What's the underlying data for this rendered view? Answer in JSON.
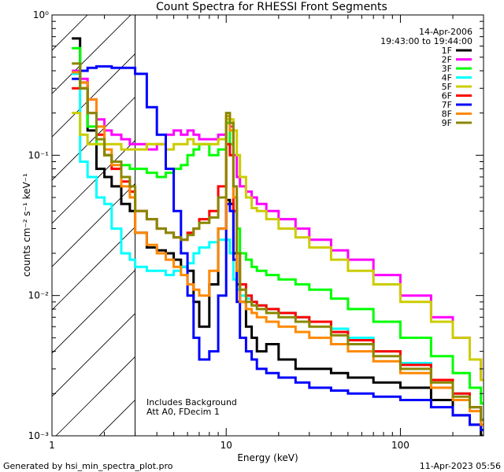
{
  "chart_data": {
    "type": "line",
    "title": "Count Spectra for RHESSI Front Segments",
    "xlabel": "Energy (keV)",
    "ylabel": "counts cm⁻² s⁻¹ keV⁻¹",
    "xscale": "log",
    "yscale": "log",
    "xlim": [
      1,
      300
    ],
    "ylim": [
      0.001,
      1.0
    ],
    "x_ticks": [
      {
        "value": 1,
        "label": "1"
      },
      {
        "value": 10,
        "label": "10"
      },
      {
        "value": 100,
        "label": "100"
      }
    ],
    "y_ticks": [
      {
        "value": 1.0,
        "label": "10⁰"
      },
      {
        "value": 0.1,
        "label": "10⁻¹"
      },
      {
        "value": 0.01,
        "label": "10⁻²"
      },
      {
        "value": 0.001,
        "label": "10⁻³"
      }
    ],
    "date": "14-Apr-2006",
    "time_range": "19:43:00 to 19:44:00",
    "excluded_region_max_kev": 3.0,
    "annotations": [
      "Includes Background",
      "Att A0, FDecim 1"
    ],
    "series": [
      {
        "name": "1F",
        "color": "#000000",
        "x": [
          1.3,
          1.45,
          1.6,
          1.8,
          2.0,
          2.2,
          2.5,
          2.8,
          3.0,
          3.5,
          4,
          4.5,
          5,
          5.5,
          6,
          6.5,
          7,
          8,
          9,
          10,
          10.5,
          11,
          11.5,
          12,
          13,
          14,
          15,
          17,
          20,
          25,
          30,
          40,
          50,
          70,
          100,
          150,
          200,
          250,
          290
        ],
        "y": [
          0.68,
          0.33,
          0.15,
          0.08,
          0.07,
          0.06,
          0.045,
          0.04,
          0.028,
          0.022,
          0.021,
          0.02,
          0.018,
          0.016,
          0.015,
          0.009,
          0.006,
          0.012,
          0.03,
          0.048,
          0.045,
          0.02,
          0.012,
          0.009,
          0.006,
          0.005,
          0.004,
          0.0045,
          0.0035,
          0.003,
          0.003,
          0.0028,
          0.0026,
          0.0024,
          0.0022,
          0.0018,
          0.0014,
          0.0012,
          0.001
        ]
      },
      {
        "name": "2F",
        "color": "#ff00ff",
        "x": [
          1.3,
          1.45,
          1.6,
          1.8,
          2.0,
          2.2,
          2.5,
          2.8,
          3.0,
          3.5,
          4,
          4.5,
          5,
          5.5,
          6,
          6.5,
          7,
          8,
          9,
          10,
          10.5,
          11,
          11.5,
          12,
          13,
          14,
          15,
          17,
          20,
          25,
          30,
          40,
          50,
          70,
          100,
          150,
          200,
          250,
          290
        ],
        "y": [
          0.4,
          0.35,
          0.25,
          0.18,
          0.15,
          0.14,
          0.13,
          0.12,
          0.12,
          0.11,
          0.12,
          0.14,
          0.15,
          0.14,
          0.15,
          0.14,
          0.13,
          0.13,
          0.14,
          0.17,
          0.16,
          0.1,
          0.07,
          0.06,
          0.055,
          0.05,
          0.045,
          0.04,
          0.035,
          0.03,
          0.025,
          0.021,
          0.018,
          0.014,
          0.01,
          0.007,
          0.005,
          0.0035,
          0.0025
        ]
      },
      {
        "name": "3F",
        "color": "#00ff00",
        "x": [
          1.3,
          1.45,
          1.6,
          1.8,
          2.0,
          2.2,
          2.5,
          2.8,
          3.0,
          3.5,
          4,
          4.5,
          5,
          5.5,
          6,
          6.5,
          7,
          8,
          9,
          10,
          10.5,
          11,
          11.5,
          12,
          13,
          14,
          15,
          17,
          20,
          25,
          30,
          40,
          50,
          70,
          100,
          150,
          200,
          250,
          290
        ],
        "y": [
          0.58,
          0.3,
          0.16,
          0.12,
          0.1,
          0.09,
          0.085,
          0.08,
          0.08,
          0.075,
          0.07,
          0.075,
          0.08,
          0.085,
          0.1,
          0.11,
          0.12,
          0.1,
          0.11,
          0.17,
          0.12,
          0.05,
          0.03,
          0.02,
          0.018,
          0.016,
          0.015,
          0.014,
          0.013,
          0.012,
          0.011,
          0.0095,
          0.008,
          0.0065,
          0.005,
          0.0037,
          0.0028,
          0.0022,
          0.0017
        ]
      },
      {
        "name": "4F",
        "color": "#00ffff",
        "x": [
          1.3,
          1.45,
          1.6,
          1.8,
          2.0,
          2.2,
          2.5,
          2.8,
          3.0,
          3.5,
          4,
          4.5,
          5,
          5.5,
          6,
          6.5,
          7,
          8,
          9,
          10,
          10.5,
          11,
          11.5,
          12,
          13,
          14,
          15,
          17,
          20,
          25,
          30,
          40,
          50,
          70,
          100,
          150,
          200,
          250,
          290
        ],
        "y": [
          0.38,
          0.09,
          0.07,
          0.05,
          0.045,
          0.03,
          0.02,
          0.018,
          0.016,
          0.015,
          0.015,
          0.014,
          0.015,
          0.016,
          0.017,
          0.02,
          0.022,
          0.024,
          0.025,
          0.025,
          0.02,
          0.013,
          0.011,
          0.01,
          0.0095,
          0.009,
          0.0085,
          0.008,
          0.0075,
          0.007,
          0.0065,
          0.0058,
          0.005,
          0.004,
          0.0033,
          0.0025,
          0.002,
          0.0016,
          0.0013
        ]
      },
      {
        "name": "5F",
        "color": "#cccc00",
        "x": [
          1.3,
          1.45,
          1.6,
          1.8,
          2.0,
          2.2,
          2.5,
          2.8,
          3.0,
          3.5,
          4,
          4.5,
          5,
          5.5,
          6,
          6.5,
          7,
          8,
          9,
          10,
          10.5,
          11,
          11.5,
          12,
          13,
          14,
          15,
          17,
          20,
          25,
          30,
          40,
          50,
          70,
          100,
          150,
          200,
          250,
          290
        ],
        "y": [
          0.2,
          0.14,
          0.12,
          0.12,
          0.12,
          0.12,
          0.11,
          0.11,
          0.11,
          0.12,
          0.12,
          0.11,
          0.12,
          0.12,
          0.13,
          0.12,
          0.12,
          0.12,
          0.13,
          0.18,
          0.18,
          0.15,
          0.1,
          0.07,
          0.05,
          0.042,
          0.04,
          0.035,
          0.03,
          0.026,
          0.022,
          0.018,
          0.015,
          0.012,
          0.009,
          0.0065,
          0.005,
          0.0035,
          0.0025
        ]
      },
      {
        "name": "6F",
        "color": "#ff0000",
        "x": [
          1.3,
          1.45,
          1.6,
          1.8,
          2.0,
          2.2,
          2.5,
          2.8,
          3.0,
          3.5,
          4,
          4.5,
          5,
          5.5,
          6,
          6.5,
          7,
          8,
          9,
          10,
          10.5,
          11,
          11.5,
          12,
          13,
          14,
          15,
          17,
          20,
          25,
          30,
          40,
          50,
          70,
          100,
          150,
          200,
          250,
          290
        ],
        "y": [
          0.3,
          0.3,
          0.2,
          0.14,
          0.1,
          0.08,
          0.065,
          0.055,
          0.04,
          0.035,
          0.03,
          0.028,
          0.026,
          0.025,
          0.028,
          0.03,
          0.035,
          0.04,
          0.06,
          0.12,
          0.1,
          0.04,
          0.02,
          0.012,
          0.01,
          0.009,
          0.0085,
          0.008,
          0.0075,
          0.007,
          0.0065,
          0.0055,
          0.0048,
          0.004,
          0.0032,
          0.0025,
          0.002,
          0.0016,
          0.0013
        ]
      },
      {
        "name": "7F",
        "color": "#0000ff",
        "x": [
          1.3,
          1.45,
          1.6,
          1.8,
          2.0,
          2.2,
          2.5,
          2.8,
          3.0,
          3.5,
          4,
          4.5,
          5,
          5.5,
          6,
          6.5,
          7,
          8,
          9,
          10,
          10.5,
          11,
          11.5,
          12,
          13,
          14,
          15,
          17,
          20,
          25,
          30,
          40,
          50,
          70,
          100,
          150,
          200,
          250,
          290
        ],
        "y": [
          0.35,
          0.4,
          0.42,
          0.43,
          0.43,
          0.42,
          0.42,
          0.42,
          0.38,
          0.22,
          0.14,
          0.08,
          0.04,
          0.02,
          0.01,
          0.005,
          0.0035,
          0.004,
          0.01,
          0.045,
          0.04,
          0.018,
          0.009,
          0.005,
          0.004,
          0.0035,
          0.003,
          0.0028,
          0.0026,
          0.0024,
          0.0022,
          0.0021,
          0.002,
          0.0019,
          0.0018,
          0.0016,
          0.0014,
          0.0012,
          0.0011
        ]
      },
      {
        "name": "8F",
        "color": "#ff8800",
        "x": [
          1.3,
          1.45,
          1.6,
          1.8,
          2.0,
          2.2,
          2.5,
          2.8,
          3.0,
          3.5,
          4,
          4.5,
          5,
          5.5,
          6,
          6.5,
          7,
          8,
          9,
          10,
          10.5,
          11,
          11.5,
          12,
          13,
          14,
          15,
          17,
          20,
          25,
          30,
          40,
          50,
          70,
          100,
          150,
          200,
          250,
          290
        ],
        "y": [
          0.39,
          0.33,
          0.25,
          0.16,
          0.11,
          0.085,
          0.06,
          0.05,
          0.028,
          0.023,
          0.02,
          0.018,
          0.016,
          0.014,
          0.012,
          0.011,
          0.01,
          0.015,
          0.03,
          0.19,
          0.15,
          0.05,
          0.015,
          0.009,
          0.008,
          0.0075,
          0.007,
          0.0065,
          0.006,
          0.0055,
          0.005,
          0.0045,
          0.004,
          0.0034,
          0.0028,
          0.0022,
          0.0018,
          0.0015,
          0.0012
        ]
      },
      {
        "name": "9F",
        "color": "#888800",
        "x": [
          1.3,
          1.45,
          1.6,
          1.8,
          2.0,
          2.2,
          2.5,
          2.8,
          3.0,
          3.5,
          4,
          4.5,
          5,
          5.5,
          6,
          6.5,
          7,
          8,
          9,
          10,
          10.5,
          11,
          11.5,
          12,
          13,
          14,
          15,
          17,
          20,
          25,
          30,
          40,
          50,
          70,
          100,
          150,
          200,
          250,
          290
        ],
        "y": [
          0.45,
          0.3,
          0.2,
          0.13,
          0.1,
          0.09,
          0.07,
          0.06,
          0.04,
          0.035,
          0.03,
          0.028,
          0.026,
          0.025,
          0.027,
          0.03,
          0.033,
          0.036,
          0.05,
          0.2,
          0.17,
          0.06,
          0.02,
          0.011,
          0.009,
          0.0085,
          0.008,
          0.0075,
          0.007,
          0.0065,
          0.006,
          0.0052,
          0.0045,
          0.0037,
          0.003,
          0.0024,
          0.0019,
          0.0016,
          0.0013
        ]
      }
    ]
  },
  "footer": {
    "left": "Generated by hsi_min_spectra_plot.pro",
    "right": "11-Apr-2023 05:56"
  }
}
